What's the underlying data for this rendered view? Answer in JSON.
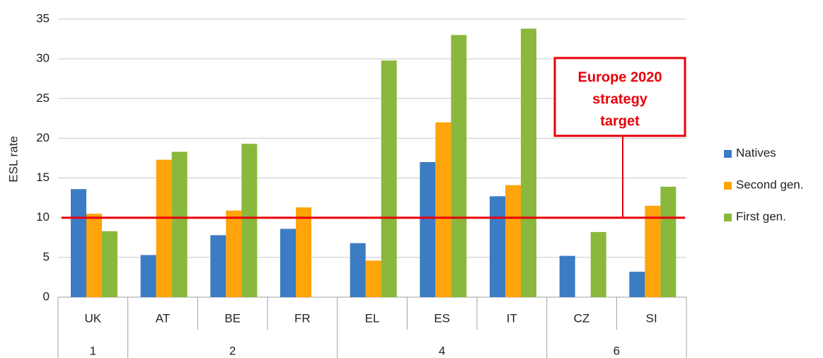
{
  "chart_data": {
    "type": "bar",
    "y_label": "ESL rate",
    "categories": [
      "UK",
      "AT",
      "BE",
      "FR",
      "EL",
      "ES",
      "IT",
      "CZ",
      "SI"
    ],
    "category_groups": [
      "1",
      "2",
      "2",
      "2",
      "4",
      "4",
      "4",
      "6",
      "6"
    ],
    "series": [
      {
        "name": "Natives",
        "color": "#3b7cc4",
        "values": [
          13.6,
          5.3,
          7.8,
          8.6,
          6.8,
          17.0,
          12.7,
          5.2,
          3.2
        ]
      },
      {
        "name": "Second gen.",
        "color": "#ffa40a",
        "values": [
          10.5,
          17.3,
          10.9,
          11.3,
          4.6,
          22.0,
          14.1,
          null,
          11.5
        ]
      },
      {
        "name": "First gen.",
        "color": "#8ab83c",
        "values": [
          8.3,
          18.3,
          19.3,
          null,
          29.8,
          33.0,
          33.8,
          8.2,
          13.9
        ]
      }
    ],
    "ylim": [
      0,
      35
    ],
    "yticks": [
      0,
      5,
      10,
      15,
      20,
      25,
      30,
      35
    ],
    "grid": true,
    "reference_line": {
      "value": 10,
      "color": "#e8000b",
      "label": [
        "Europe 2020",
        "strategy",
        "target"
      ]
    },
    "legend": "right"
  }
}
